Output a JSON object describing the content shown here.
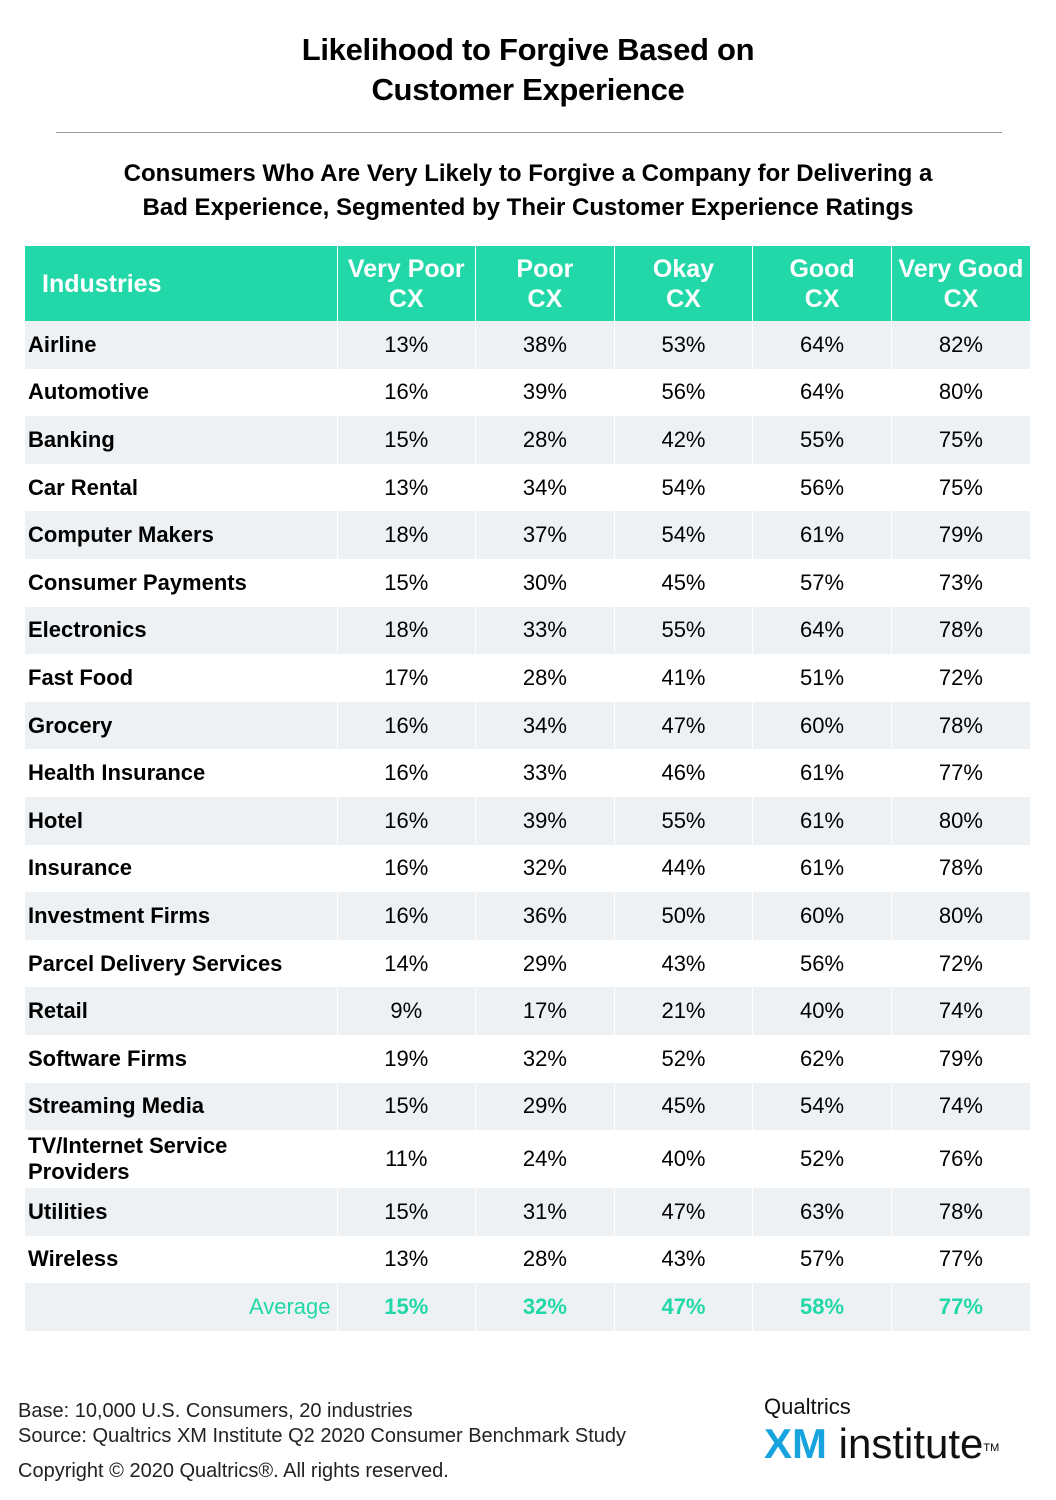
{
  "title": {
    "line1": "Likelihood to Forgive Based on",
    "line2": "Customer Experience"
  },
  "subtitle": {
    "line1": "Consumers Who Are Very Likely to Forgive a Company for Delivering a",
    "line2": "Bad Experience, Segmented by Their Customer Experience Ratings"
  },
  "colors": {
    "header": "#22d8a8",
    "average_text": "#22d8a8",
    "stripe": "#eef1f4",
    "logo_xm": "#17a3de"
  },
  "chart_data": {
    "type": "table",
    "columns": [
      {
        "line1": "Industries",
        "line2": ""
      },
      {
        "line1": "Very Poor",
        "line2": "CX"
      },
      {
        "line1": "Poor",
        "line2": "CX"
      },
      {
        "line1": "Okay",
        "line2": "CX"
      },
      {
        "line1": "Good",
        "line2": "CX"
      },
      {
        "line1": "Very Good",
        "line2": "CX"
      }
    ],
    "rows": [
      {
        "name": [
          "Airline"
        ],
        "values": [
          "13%",
          "38%",
          "53%",
          "64%",
          "82%"
        ]
      },
      {
        "name": [
          "Automotive"
        ],
        "values": [
          "16%",
          "39%",
          "56%",
          "64%",
          "80%"
        ]
      },
      {
        "name": [
          "Banking"
        ],
        "values": [
          "15%",
          "28%",
          "42%",
          "55%",
          "75%"
        ]
      },
      {
        "name": [
          "Car Rental"
        ],
        "values": [
          "13%",
          "34%",
          "54%",
          "56%",
          "75%"
        ]
      },
      {
        "name": [
          "Computer Makers"
        ],
        "values": [
          "18%",
          "37%",
          "54%",
          "61%",
          "79%"
        ]
      },
      {
        "name": [
          "Consumer Payments"
        ],
        "values": [
          "15%",
          "30%",
          "45%",
          "57%",
          "73%"
        ]
      },
      {
        "name": [
          "Electronics"
        ],
        "values": [
          "18%",
          "33%",
          "55%",
          "64%",
          "78%"
        ]
      },
      {
        "name": [
          "Fast Food"
        ],
        "values": [
          "17%",
          "28%",
          "41%",
          "51%",
          "72%"
        ]
      },
      {
        "name": [
          "Grocery"
        ],
        "values": [
          "16%",
          "34%",
          "47%",
          "60%",
          "78%"
        ]
      },
      {
        "name": [
          "Health Insurance"
        ],
        "values": [
          "16%",
          "33%",
          "46%",
          "61%",
          "77%"
        ]
      },
      {
        "name": [
          "Hotel"
        ],
        "values": [
          "16%",
          "39%",
          "55%",
          "61%",
          "80%"
        ]
      },
      {
        "name": [
          "Insurance"
        ],
        "values": [
          "16%",
          "32%",
          "44%",
          "61%",
          "78%"
        ]
      },
      {
        "name": [
          "Investment Firms"
        ],
        "values": [
          "16%",
          "36%",
          "50%",
          "60%",
          "80%"
        ]
      },
      {
        "name": [
          "Parcel Delivery Services"
        ],
        "values": [
          "14%",
          "29%",
          "43%",
          "56%",
          "72%"
        ]
      },
      {
        "name": [
          "Retail"
        ],
        "values": [
          "9%",
          "17%",
          "21%",
          "40%",
          "74%"
        ]
      },
      {
        "name": [
          "Software Firms"
        ],
        "values": [
          "19%",
          "32%",
          "52%",
          "62%",
          "79%"
        ]
      },
      {
        "name": [
          "Streaming Media"
        ],
        "values": [
          "15%",
          "29%",
          "45%",
          "54%",
          "74%"
        ]
      },
      {
        "name": [
          "TV/Internet Service",
          "Providers"
        ],
        "values": [
          "11%",
          "24%",
          "40%",
          "52%",
          "76%"
        ]
      },
      {
        "name": [
          "Utilities"
        ],
        "values": [
          "15%",
          "31%",
          "47%",
          "63%",
          "78%"
        ]
      },
      {
        "name": [
          "Wireless"
        ],
        "values": [
          "13%",
          "28%",
          "43%",
          "57%",
          "77%"
        ]
      }
    ],
    "average": {
      "label": "Average",
      "values": [
        "15%",
        "32%",
        "47%",
        "58%",
        "77%"
      ]
    }
  },
  "footer": {
    "base": "Base: 10,000 U.S. Consumers, 20 industries",
    "source": "Source: Qualtrics XM Institute Q2 2020 Consumer Benchmark Study",
    "copyright": "Copyright © 2020 Qualtrics®.  All rights reserved."
  },
  "logo": {
    "brand": "Qualtrics",
    "xm": "XM",
    "institute": " institute",
    "tm": "TM"
  }
}
